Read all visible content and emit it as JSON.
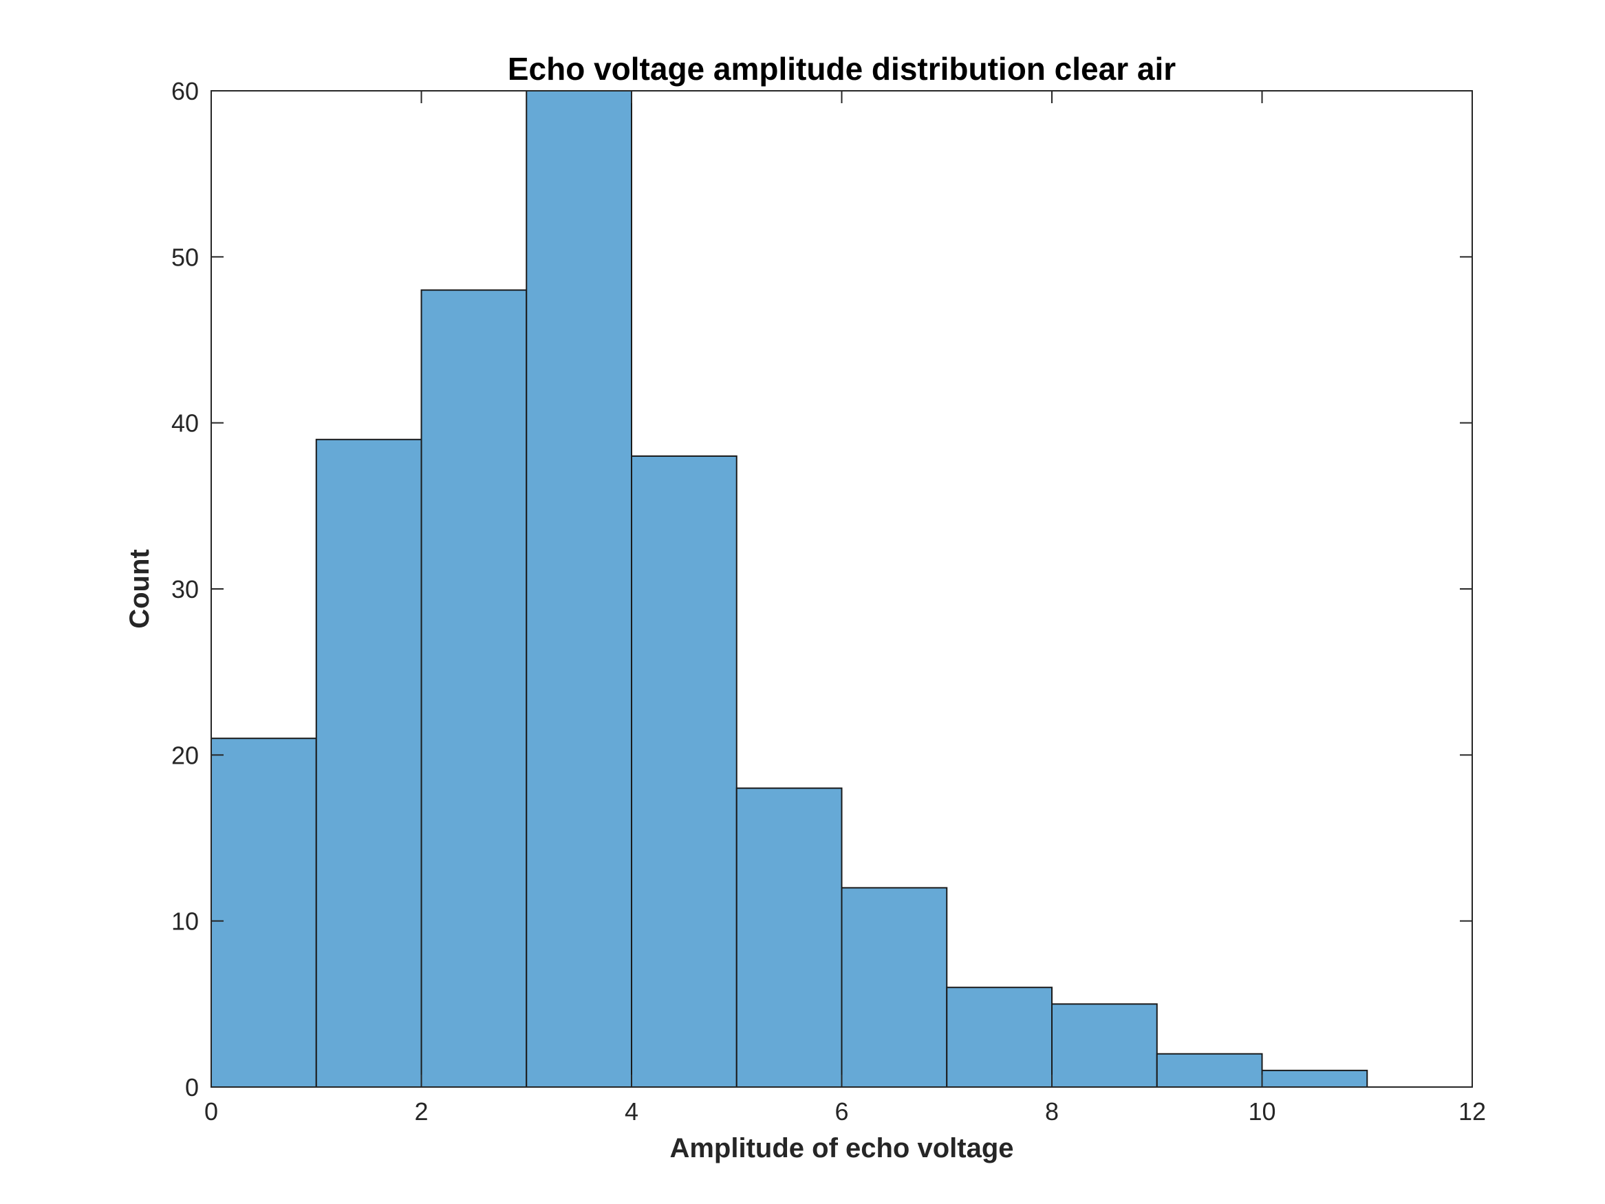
{
  "chart_data": {
    "type": "bar",
    "title": "Echo voltage amplitude distribution clear air",
    "xlabel": "Amplitude of echo voltage",
    "ylabel": "Count",
    "bin_edges": [
      0,
      1,
      2,
      3,
      4,
      5,
      6,
      7,
      8,
      9,
      10,
      11
    ],
    "values": [
      21,
      39,
      48,
      60,
      38,
      18,
      12,
      6,
      5,
      2,
      1
    ],
    "xlim": [
      0,
      12
    ],
    "ylim": [
      0,
      60
    ],
    "xticks": [
      0,
      2,
      4,
      6,
      8,
      10,
      12
    ],
    "yticks": [
      0,
      10,
      20,
      30,
      40,
      50,
      60
    ],
    "grid": false,
    "legend": "none",
    "colors": {
      "bar_fill": "#66a9d6",
      "bar_edge": "#1a1a1a",
      "axis": "#262626",
      "background": "#ffffff"
    }
  }
}
